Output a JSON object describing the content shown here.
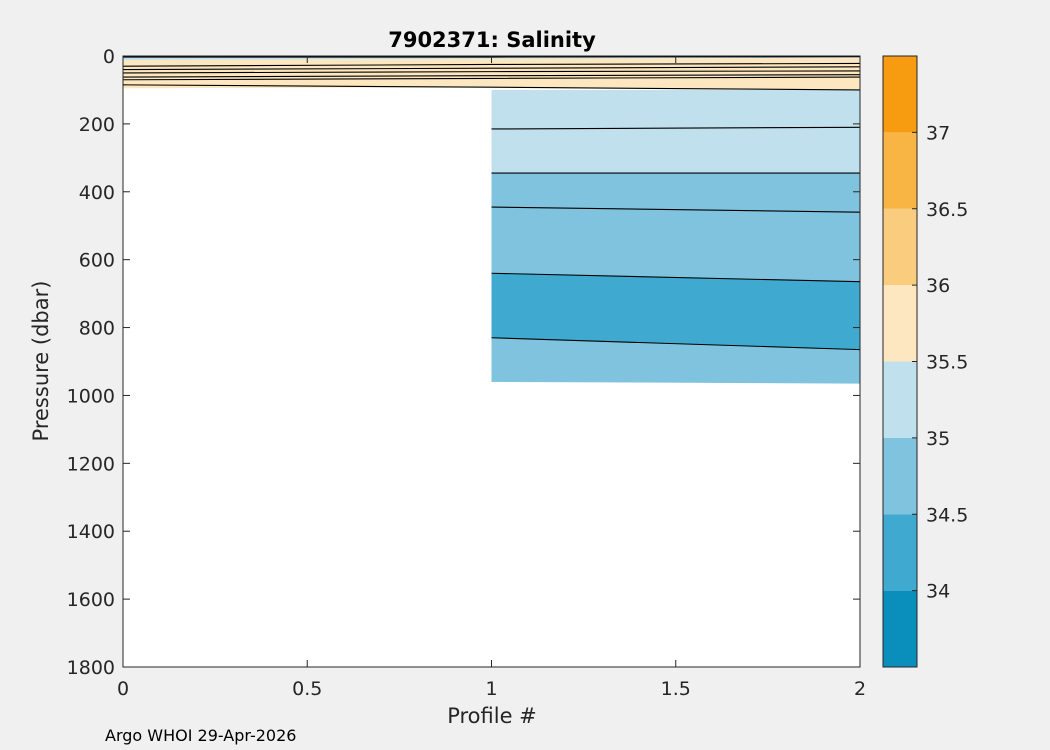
{
  "chart_data": {
    "type": "contour",
    "title": "7902371:  Salinity",
    "xlabel": "Profile #",
    "ylabel": "Pressure (dbar)",
    "xlim": [
      0,
      2
    ],
    "ylim": [
      0,
      1800
    ],
    "y_reversed": true,
    "x_ticks": [
      "0",
      "0.5",
      "1",
      "1.5",
      "2"
    ],
    "x_tick_values": [
      0,
      0.5,
      1,
      1.5,
      2
    ],
    "y_ticks": [
      "0",
      "200",
      "400",
      "600",
      "800",
      "1000",
      "1200",
      "1400",
      "1600",
      "1800"
    ],
    "y_tick_values": [
      0,
      200,
      400,
      600,
      800,
      1000,
      1200,
      1400,
      1600,
      1800
    ],
    "profiles": [
      {
        "profile": 0,
        "max_pressure": 100
      },
      {
        "profile": 1,
        "max_pressure": 960
      },
      {
        "profile": 2,
        "max_pressure": 965
      }
    ],
    "bands": [
      {
        "from_profile": 0,
        "to_profile": 2,
        "top": [
          0,
          0,
          0
        ],
        "bottom": [
          12,
          8,
          5
        ],
        "level": 35.25
      },
      {
        "from_profile": 0,
        "to_profile": 2,
        "top": [
          12,
          8,
          5
        ],
        "bottom": [
          95,
          92,
          100
        ],
        "level": 35.75
      },
      {
        "from_profile": 1,
        "to_profile": 2,
        "top": [
          100,
          100
        ],
        "bottom": [
          345,
          345
        ],
        "level": 35.25
      },
      {
        "from_profile": 1,
        "to_profile": 2,
        "top": [
          345,
          345
        ],
        "bottom": [
          640,
          665
        ],
        "level": 34.75
      },
      {
        "from_profile": 1,
        "to_profile": 2,
        "top": [
          640,
          665
        ],
        "bottom": [
          830,
          865
        ],
        "level": 34.25
      },
      {
        "from_profile": 1,
        "to_profile": 2,
        "top": [
          830,
          865
        ],
        "bottom": [
          960,
          965
        ],
        "level": 34.75
      }
    ],
    "contour_lines": [
      {
        "profiles": [
          0,
          1,
          2
        ],
        "pressures": [
          3,
          3,
          2
        ]
      },
      {
        "profiles": [
          0,
          1,
          2
        ],
        "pressures": [
          30,
          25,
          22
        ]
      },
      {
        "profiles": [
          0,
          1,
          2
        ],
        "pressures": [
          40,
          36,
          32
        ]
      },
      {
        "profiles": [
          0,
          1,
          2
        ],
        "pressures": [
          50,
          46,
          44
        ]
      },
      {
        "profiles": [
          0,
          1,
          2
        ],
        "pressures": [
          62,
          58,
          55
        ]
      },
      {
        "profiles": [
          0,
          1,
          2
        ],
        "pressures": [
          70,
          66,
          62
        ]
      },
      {
        "profiles": [
          0,
          1,
          2
        ],
        "pressures": [
          85,
          92,
          100
        ]
      },
      {
        "profiles": [
          1,
          2
        ],
        "pressures": [
          215,
          210
        ]
      },
      {
        "profiles": [
          1,
          2
        ],
        "pressures": [
          345,
          345
        ]
      },
      {
        "profiles": [
          1,
          2
        ],
        "pressures": [
          445,
          460
        ]
      },
      {
        "profiles": [
          1,
          2
        ],
        "pressures": [
          640,
          665
        ]
      },
      {
        "profiles": [
          1,
          2
        ],
        "pressures": [
          830,
          865
        ]
      }
    ],
    "colorbar": {
      "clim": [
        33.5,
        37.5
      ],
      "levels": [
        33.5,
        34.0,
        34.5,
        35.0,
        35.5,
        36.0,
        36.5,
        37.0,
        37.5
      ],
      "colors": [
        "#0a8fbc",
        "#3fa9cf",
        "#7fc3de",
        "#bfe0ec",
        "#fce7c0",
        "#f9cd7d",
        "#f8b543",
        "#f79c10"
      ],
      "tick_labels": [
        "34",
        "34.5",
        "35",
        "35.5",
        "36",
        "36.5",
        "37"
      ],
      "tick_values": [
        34,
        34.5,
        35,
        35.5,
        36,
        36.5,
        37
      ]
    }
  },
  "footer": "Argo WHOI 29-Apr-2026"
}
